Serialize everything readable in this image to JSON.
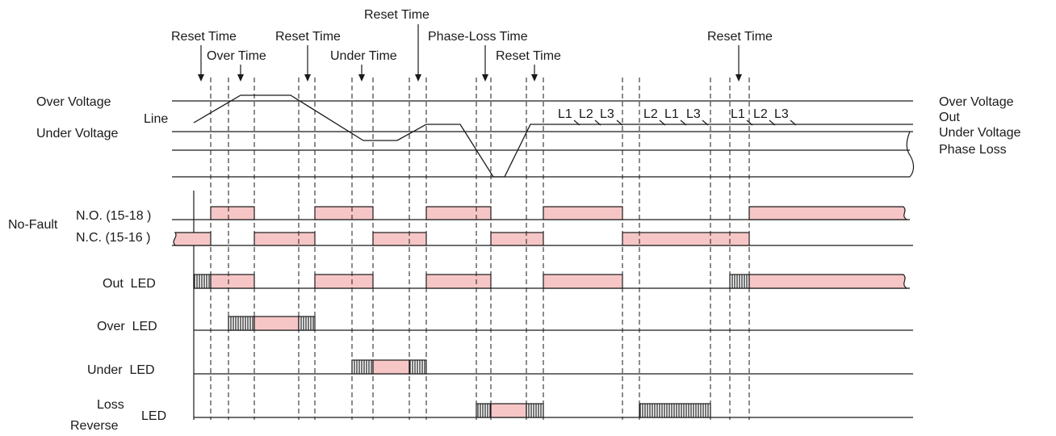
{
  "top_labels": [
    {
      "id": "reset-1",
      "text": "Reset Time"
    },
    {
      "id": "over-time",
      "text": "Over Time"
    },
    {
      "id": "reset-2",
      "text": "Reset Time"
    },
    {
      "id": "reset-3",
      "text": "Reset Time"
    },
    {
      "id": "under-time",
      "text": "Under Time"
    },
    {
      "id": "phase-loss-time",
      "text": "Phase-Loss Time"
    },
    {
      "id": "reset-4",
      "text": "Reset Time"
    },
    {
      "id": "reset-5",
      "text": "Reset Time"
    }
  ],
  "left_labels": {
    "over_voltage": "Over Voltage",
    "line": "Line",
    "under_voltage": "Under Voltage",
    "no_fault": "No-Fault",
    "no": "N.O. (15-18 )",
    "nc": "N.C. (15-16 )",
    "out_led": "Out  LED",
    "over_led": "Over  LED",
    "under_led": "Under  LED",
    "loss": "Loss",
    "reverse": "Reverse",
    "led": "LED"
  },
  "right_labels": {
    "over_voltage": "Over Voltage",
    "out": "Out",
    "under_voltage": "Under Voltage",
    "phase_loss": "Phase Loss"
  },
  "phase_labels": [
    "L1",
    "L2",
    "L3",
    "L2",
    "L1",
    "L3",
    "L1",
    "L2",
    "L3"
  ],
  "colors": {
    "pulse_fill": "#f6c6c6",
    "line": "#1a1a1a"
  }
}
